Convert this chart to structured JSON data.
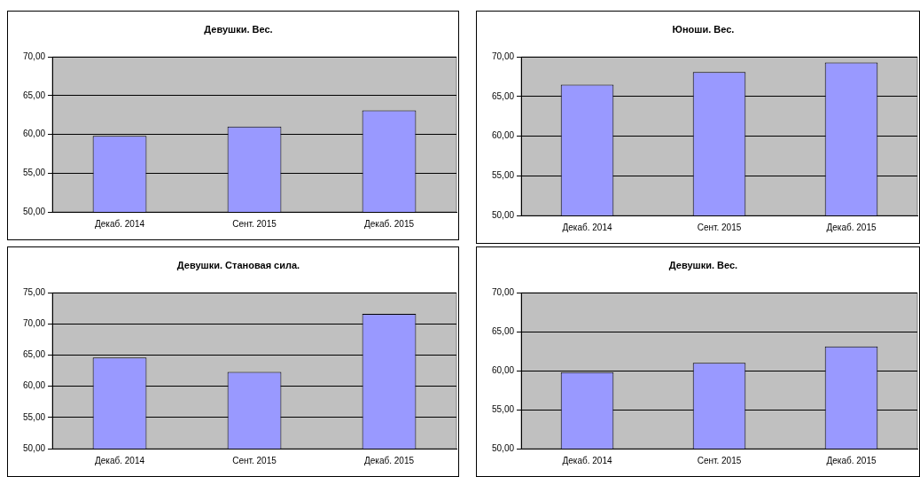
{
  "chart_data": [
    {
      "type": "bar",
      "title": "Девушки. Вес.",
      "categories": [
        "Декаб. 2014",
        "Сент. 2015",
        "Декаб. 2015"
      ],
      "values": [
        59.8,
        61.0,
        63.1
      ],
      "color": "#9999ff",
      "ylim": [
        50,
        70
      ],
      "yticks": [
        {
          "value": 50,
          "label": "50,00"
        },
        {
          "value": 55,
          "label": "55,00"
        },
        {
          "value": 60,
          "label": "60,00"
        },
        {
          "value": 65,
          "label": "65,00"
        },
        {
          "value": 70,
          "label": "70,00"
        }
      ],
      "grid": "y",
      "legend": false
    },
    {
      "type": "bar",
      "title": "Юноши. Вес.",
      "categories": [
        "Декаб. 2014",
        "Сент. 2015",
        "Декаб. 2015"
      ],
      "values": [
        66.5,
        68.1,
        69.3
      ],
      "color": "#9999ff",
      "ylim": [
        50,
        70
      ],
      "yticks": [
        {
          "value": 50,
          "label": "50,00"
        },
        {
          "value": 55,
          "label": "55,00"
        },
        {
          "value": 60,
          "label": "60,00"
        },
        {
          "value": 65,
          "label": "65,00"
        },
        {
          "value": 70,
          "label": "70,00"
        }
      ],
      "grid": "y",
      "legend": false
    },
    {
      "type": "bar",
      "title": "Девушки. Становая сила.",
      "categories": [
        "Декаб. 2014",
        "Сент. 2015",
        "Декаб. 2015"
      ],
      "values": [
        64.6,
        62.3,
        71.6
      ],
      "color": "#9999ff",
      "ylim": [
        50,
        75
      ],
      "yticks": [
        {
          "value": 50,
          "label": "50,00"
        },
        {
          "value": 55,
          "label": "55,00"
        },
        {
          "value": 60,
          "label": "60,00"
        },
        {
          "value": 65,
          "label": "65,00"
        },
        {
          "value": 70,
          "label": "70,00"
        },
        {
          "value": 75,
          "label": "75,00"
        }
      ],
      "grid": "y",
      "legend": false
    },
    {
      "type": "bar",
      "title": "Девушки. Вес.",
      "categories": [
        "Декаб. 2014",
        "Сент. 2015",
        "Декаб. 2015"
      ],
      "values": [
        59.8,
        61.0,
        63.1
      ],
      "color": "#9999ff",
      "ylim": [
        50,
        70
      ],
      "yticks": [
        {
          "value": 50,
          "label": "50,00"
        },
        {
          "value": 55,
          "label": "55,00"
        },
        {
          "value": 60,
          "label": "60,00"
        },
        {
          "value": 65,
          "label": "65,00"
        },
        {
          "value": 70,
          "label": "70,00"
        }
      ],
      "grid": "y",
      "legend": false
    }
  ]
}
